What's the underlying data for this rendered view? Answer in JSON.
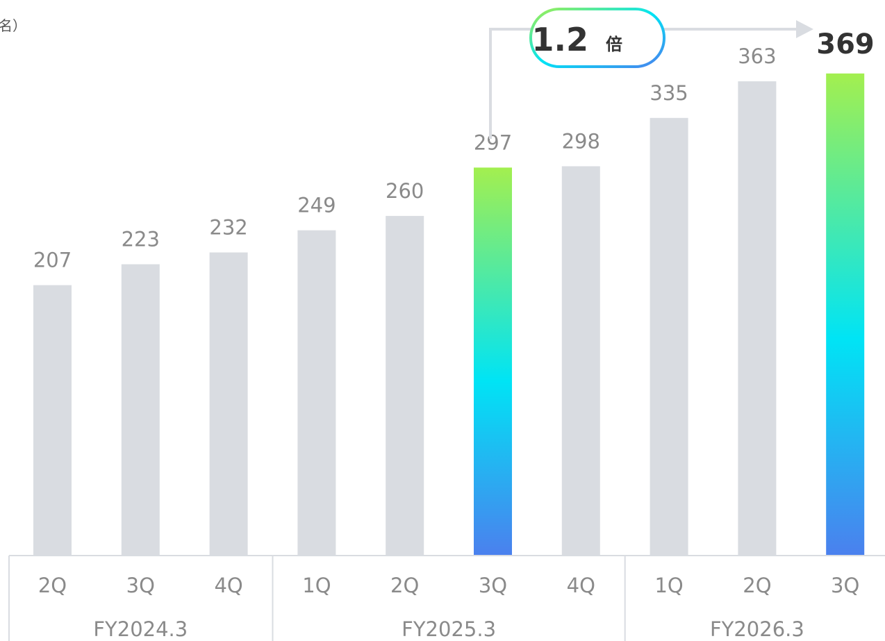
{
  "chart_data": {
    "type": "bar",
    "unit_label": "名）",
    "groups": [
      {
        "label": "FY2024.3",
        "quarters": [
          "2Q",
          "3Q",
          "4Q"
        ]
      },
      {
        "label": "FY2025.3",
        "quarters": [
          "1Q",
          "2Q",
          "3Q",
          "4Q"
        ]
      },
      {
        "label": "FY2026.3",
        "quarters": [
          "1Q",
          "2Q",
          "3Q"
        ]
      }
    ],
    "categories": [
      "2Q",
      "3Q",
      "4Q",
      "1Q",
      "2Q",
      "3Q",
      "4Q",
      "1Q",
      "2Q",
      "3Q"
    ],
    "values": [
      207,
      223,
      232,
      249,
      260,
      297,
      298,
      335,
      363,
      369
    ],
    "highlighted_indices": [
      5,
      9
    ],
    "growth_annotation": {
      "from_index": 5,
      "to_index": 9,
      "value": "1.2",
      "suffix": "倍"
    },
    "colors": {
      "bar": "#d9dce1",
      "highlight_gradient": [
        "#a3ef4f",
        "#00e4f5",
        "#4b80ee"
      ],
      "axis": "#d9dce1",
      "text": "#8a8a8a",
      "emphasis_text": "#333333"
    }
  }
}
